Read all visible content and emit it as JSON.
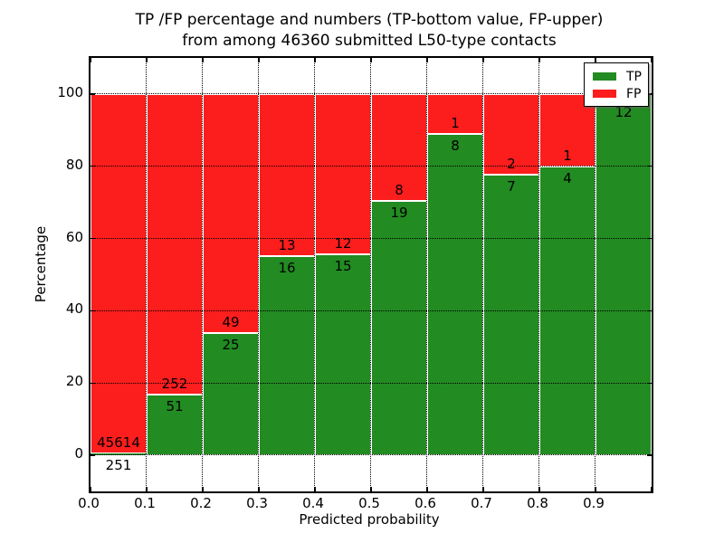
{
  "title": {
    "line1": "TP /FP percentage and numbers (TP-bottom value, FP-upper)",
    "line2": "from among 46360 submitted L50-type contacts"
  },
  "axes": {
    "xlabel": "Predicted probability",
    "ylabel": "Percentage",
    "x_tick_labels": [
      "0.0",
      "0.1",
      "0.2",
      "0.3",
      "0.4",
      "0.5",
      "0.6",
      "0.7",
      "0.8",
      "0.9"
    ],
    "y_tick_labels": [
      "0",
      "20",
      "40",
      "60",
      "80",
      "100"
    ]
  },
  "legend": {
    "entries": [
      {
        "label": "TP",
        "color": "#228B22"
      },
      {
        "label": "FP",
        "color": "#fc1d1d"
      }
    ]
  },
  "colors": {
    "tp": "#228B22",
    "fp": "#fc1d1d",
    "background": "#ffffff",
    "grid": "#000000"
  },
  "chart_data": {
    "type": "bar",
    "stacked": true,
    "normalized": "each bin scaled to 100%",
    "title": "TP /FP percentage and numbers (TP-bottom value, FP-upper) from among 46360 submitted L50-type contacts",
    "xlabel": "Predicted probability",
    "ylabel": "Percentage",
    "xlim": [
      0.0,
      1.0
    ],
    "ylim": [
      -10,
      110
    ],
    "x_ticks": [
      0.0,
      0.1,
      0.2,
      0.3,
      0.4,
      0.5,
      0.6,
      0.7,
      0.8,
      0.9
    ],
    "y_ticks": [
      0,
      20,
      40,
      60,
      80,
      100
    ],
    "grid": "dotted",
    "legend_position": "upper right",
    "bin_edges": [
      0.0,
      0.1,
      0.2,
      0.3,
      0.4,
      0.5,
      0.6,
      0.7,
      0.8,
      0.9,
      1.0
    ],
    "categories": [
      "0.0-0.1",
      "0.1-0.2",
      "0.2-0.3",
      "0.3-0.4",
      "0.4-0.5",
      "0.5-0.6",
      "0.6-0.7",
      "0.7-0.8",
      "0.8-0.9",
      "0.9-1.0"
    ],
    "series": [
      {
        "name": "TP",
        "color": "#228B22",
        "counts": [
          251,
          51,
          25,
          16,
          15,
          19,
          8,
          7,
          4,
          12
        ],
        "percent": [
          0.55,
          16.83,
          33.78,
          55.17,
          55.56,
          70.37,
          88.89,
          77.78,
          80.0,
          100.0
        ],
        "count_labels": [
          "251",
          "51",
          "25",
          "16",
          "15",
          "19",
          "8",
          "7",
          "4",
          "12"
        ]
      },
      {
        "name": "FP",
        "color": "#fc1d1d",
        "counts": [
          45614,
          252,
          49,
          13,
          12,
          8,
          1,
          2,
          1,
          0
        ],
        "percent": [
          99.45,
          83.17,
          66.22,
          44.83,
          44.44,
          29.63,
          11.11,
          22.22,
          20.0,
          0.0
        ],
        "count_labels": [
          "45614",
          "252",
          "49",
          "13",
          "12",
          "8",
          "1",
          "2",
          "1",
          ""
        ]
      }
    ]
  }
}
